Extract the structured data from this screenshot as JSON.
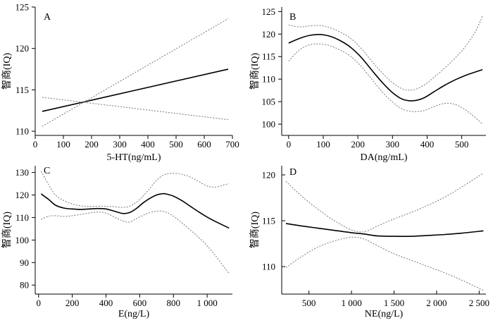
{
  "chart_data": [
    {
      "panel": "A",
      "type": "line",
      "xlabel": "5-HT(ng/mL)",
      "ylabel": "智商(IQ)",
      "xlim": [
        0,
        700
      ],
      "ylim": [
        109.5,
        125
      ],
      "xticks": [
        0,
        100,
        200,
        300,
        400,
        500,
        600,
        700
      ],
      "xtick_labels": [
        "0",
        "100",
        "200",
        "300",
        "400",
        "500",
        "600",
        "700"
      ],
      "yticks": [
        110,
        115,
        120,
        125
      ],
      "ytick_labels": [
        "110",
        "115",
        "120",
        "125"
      ],
      "series": [
        {
          "name": "estimate",
          "style": "solid",
          "x": [
            25,
            685
          ],
          "y": [
            112.4,
            117.5
          ]
        },
        {
          "name": "upper_ci",
          "style": "dotted",
          "x": [
            25,
            685
          ],
          "y": [
            110.6,
            123.6
          ]
        },
        {
          "name": "lower_ci",
          "style": "dotted",
          "x": [
            25,
            685
          ],
          "y": [
            114.1,
            111.4
          ]
        }
      ]
    },
    {
      "panel": "B",
      "type": "line",
      "xlabel": "DA(ng/mL)",
      "ylabel": "智商(IQ)",
      "xlim": [
        -20,
        570
      ],
      "ylim": [
        97.5,
        126
      ],
      "xticks": [
        0,
        100,
        200,
        300,
        400,
        500
      ],
      "xtick_labels": [
        "0",
        "100",
        "200",
        "300",
        "400",
        "500"
      ],
      "yticks": [
        100,
        105,
        110,
        115,
        120,
        125
      ],
      "ytick_labels": [
        "100",
        "105",
        "110",
        "115",
        "120",
        "125"
      ],
      "series": [
        {
          "name": "estimate",
          "style": "solid",
          "x": [
            0,
            30,
            60,
            90,
            120,
            150,
            180,
            210,
            240,
            270,
            300,
            330,
            360,
            390,
            420,
            450,
            480,
            510,
            540,
            560
          ],
          "y": [
            118.0,
            119.0,
            119.7,
            119.9,
            119.5,
            118.5,
            117.0,
            114.8,
            112.0,
            109.3,
            107.0,
            105.5,
            105.2,
            105.8,
            107.2,
            108.6,
            109.8,
            110.8,
            111.6,
            112.1
          ]
        },
        {
          "name": "upper_ci",
          "style": "dotted",
          "x": [
            0,
            30,
            60,
            90,
            120,
            150,
            180,
            210,
            240,
            270,
            300,
            330,
            360,
            390,
            420,
            450,
            480,
            510,
            540,
            560
          ],
          "y": [
            122.0,
            121.6,
            121.8,
            121.9,
            121.4,
            120.4,
            119.0,
            116.8,
            114.0,
            111.4,
            109.2,
            107.8,
            107.6,
            108.6,
            110.4,
            112.4,
            114.6,
            117.2,
            120.6,
            124.0
          ]
        },
        {
          "name": "lower_ci",
          "style": "dotted",
          "x": [
            0,
            30,
            60,
            90,
            120,
            150,
            180,
            210,
            240,
            270,
            300,
            330,
            360,
            390,
            420,
            450,
            480,
            510,
            540,
            560
          ],
          "y": [
            114.0,
            116.4,
            117.6,
            117.8,
            117.4,
            116.4,
            115.0,
            112.8,
            110.0,
            107.2,
            104.9,
            103.3,
            102.8,
            103.0,
            103.9,
            104.6,
            104.4,
            103.2,
            101.4,
            100.0
          ]
        }
      ]
    },
    {
      "panel": "C",
      "type": "line",
      "xlabel": "E(ng/L)",
      "ylabel": "智商(IQ)",
      "xlim": [
        -20,
        1150
      ],
      "ylim": [
        76,
        133
      ],
      "xticks": [
        0,
        200,
        400,
        600,
        800,
        1000
      ],
      "xtick_labels": [
        "0",
        "200",
        "400",
        "600",
        "800",
        "1 000"
      ],
      "yticks": [
        80,
        90,
        100,
        110,
        120,
        130
      ],
      "ytick_labels": [
        "80",
        "90",
        "100",
        "110",
        "120",
        "130"
      ],
      "series": [
        {
          "name": "estimate",
          "style": "solid",
          "x": [
            15,
            60,
            100,
            150,
            200,
            250,
            300,
            350,
            400,
            450,
            500,
            540,
            580,
            620,
            660,
            700,
            740,
            760,
            800,
            850,
            900,
            950,
            1000,
            1050,
            1100,
            1130
          ],
          "y": [
            120.5,
            118.0,
            115.5,
            114.2,
            113.8,
            113.6,
            113.8,
            114.0,
            113.8,
            112.8,
            111.8,
            112.2,
            114.0,
            116.5,
            118.5,
            120.0,
            120.6,
            120.4,
            119.5,
            117.5,
            115.0,
            112.5,
            110.2,
            108.2,
            106.4,
            105.3
          ]
        },
        {
          "name": "upper_ci",
          "style": "dotted",
          "x": [
            15,
            60,
            100,
            150,
            200,
            250,
            300,
            350,
            400,
            450,
            500,
            540,
            580,
            620,
            660,
            700,
            740,
            780,
            820,
            860,
            900,
            950,
            1000,
            1050,
            1100,
            1130
          ],
          "y": [
            130.5,
            124.5,
            120.0,
            117.5,
            116.0,
            115.2,
            115.0,
            115.0,
            115.0,
            114.8,
            114.5,
            115.0,
            116.8,
            119.5,
            123.0,
            126.5,
            128.8,
            129.6,
            129.6,
            129.0,
            128.0,
            126.0,
            124.0,
            123.5,
            124.5,
            125.0
          ]
        },
        {
          "name": "lower_ci",
          "style": "dotted",
          "x": [
            15,
            60,
            100,
            150,
            200,
            250,
            300,
            350,
            400,
            450,
            500,
            540,
            580,
            620,
            660,
            700,
            740,
            780,
            820,
            860,
            900,
            950,
            1000,
            1050,
            1100,
            1130
          ],
          "y": [
            109.2,
            110.6,
            110.8,
            110.5,
            110.8,
            111.4,
            112.0,
            112.4,
            112.0,
            110.2,
            108.5,
            108.0,
            109.5,
            111.0,
            112.2,
            112.8,
            112.8,
            111.5,
            109.5,
            107.0,
            104.5,
            101.2,
            97.5,
            93.0,
            88.0,
            85.3
          ]
        }
      ]
    },
    {
      "panel": "D",
      "type": "line",
      "xlabel": "NE(ng/L)",
      "ylabel": "智商(IQ)",
      "xlim": [
        180,
        2580
      ],
      "ylim": [
        107,
        121
      ],
      "xticks": [
        500,
        1000,
        1500,
        2000,
        2500
      ],
      "xtick_labels": [
        "500",
        "1 000",
        "1 500",
        "2 000",
        "2 500"
      ],
      "yticks": [
        110,
        115,
        120
      ],
      "ytick_labels": [
        "110",
        "115",
        "120"
      ],
      "series": [
        {
          "name": "estimate",
          "style": "solid",
          "x": [
            230,
            400,
            600,
            800,
            1000,
            1150,
            1300,
            1500,
            1700,
            1900,
            2100,
            2300,
            2550
          ],
          "y": [
            114.7,
            114.45,
            114.2,
            113.95,
            113.7,
            113.55,
            113.35,
            113.3,
            113.3,
            113.4,
            113.5,
            113.65,
            113.9
          ]
        },
        {
          "name": "upper_ci",
          "style": "dotted",
          "x": [
            230,
            400,
            600,
            800,
            1000,
            1150,
            1300,
            1500,
            1700,
            1900,
            2100,
            2300,
            2550
          ],
          "y": [
            119.3,
            117.8,
            116.3,
            115.0,
            114.0,
            113.8,
            114.4,
            115.2,
            115.9,
            116.7,
            117.6,
            118.7,
            120.2
          ]
        },
        {
          "name": "lower_ci",
          "style": "dotted",
          "x": [
            230,
            400,
            600,
            800,
            1000,
            1150,
            1300,
            1500,
            1700,
            1900,
            2100,
            2300,
            2550
          ],
          "y": [
            109.9,
            111.0,
            112.1,
            112.8,
            113.2,
            113.0,
            112.3,
            111.4,
            110.7,
            110.0,
            109.3,
            108.5,
            107.4
          ]
        }
      ]
    }
  ]
}
